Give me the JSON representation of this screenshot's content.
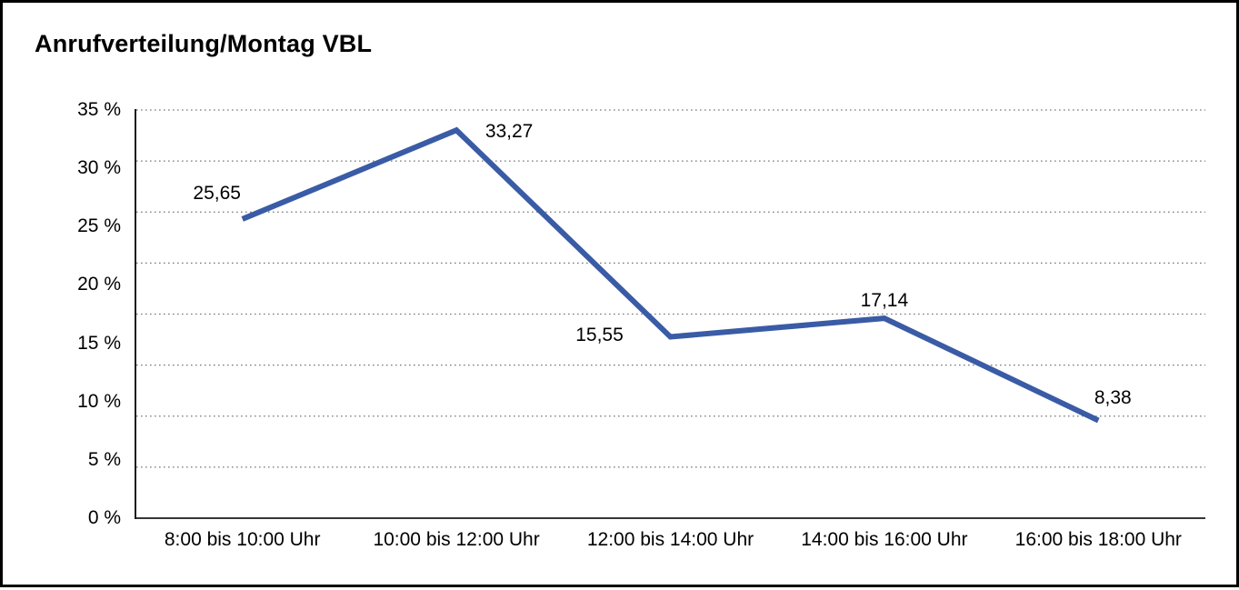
{
  "title": "Anrufverteilung/Montag VBL",
  "chart_data": {
    "type": "line",
    "title": "Anrufverteilung/Montag VBL",
    "categories": [
      "8:00 bis 10:00 Uhr",
      "10:00 bis 12:00 Uhr",
      "12:00 bis 14:00 Uhr",
      "14:00 bis 16:00 Uhr",
      "16:00 bis 18:00 Uhr"
    ],
    "values": [
      25.65,
      33.27,
      15.55,
      17.14,
      8.38
    ],
    "point_labels": [
      "25,65",
      "33,27",
      "15,55",
      "17,14",
      "8,38"
    ],
    "y_ticks": [
      "35 %",
      "30 %",
      "25 %",
      "20 %",
      "15 %",
      "10 %",
      "5 %",
      "0 %"
    ],
    "ylim": [
      0,
      35
    ],
    "xlabel": "",
    "ylabel": "",
    "legend": "none",
    "grid": "horizontal-dotted",
    "line_color": "#3A5BA5",
    "grid_color": "#777777",
    "axis_color": "#1a1a1a",
    "text_color": "#000000",
    "background": "#ffffff",
    "frame_border_color": "#000000"
  }
}
